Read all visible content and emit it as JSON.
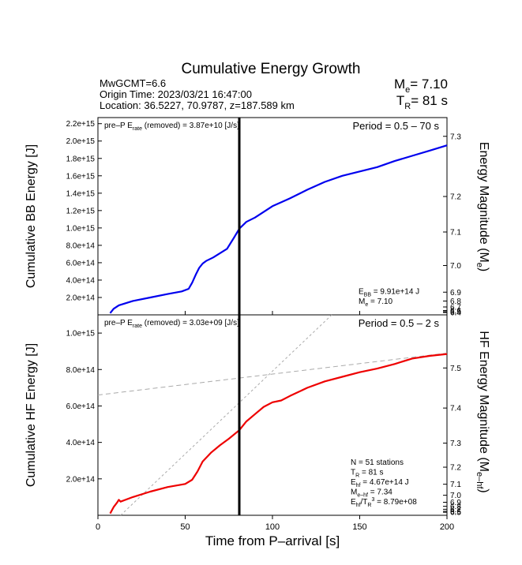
{
  "title": "Cumulative Energy Growth",
  "header": {
    "event_mw": "MwGCMT=6.6",
    "origin_time": "Origin Time: 2023/03/21 16:47:00",
    "location": "Location: 36.5227, 70.9787, z=187.589 km",
    "me_base": "M",
    "me_sub": "e",
    "me_value": "= 7.10",
    "tr_base": "T",
    "tr_sub": "R",
    "tr_value": "= 81  s"
  },
  "xlabel": "Time from P–arrival [s]",
  "x_ticks": [
    "0",
    "50",
    "100",
    "150",
    "200"
  ],
  "chart_data": [
    {
      "type": "line",
      "panel": "broadband",
      "ylabel": "Cumulative BB Energy [J]",
      "ylabel_right": "Energy Magnitude (M",
      "ylabel_right_sub": "e",
      "ylabel_right_end": ")",
      "xlim": [
        0,
        200
      ],
      "ylim": [
        0,
        2270000000000000.0
      ],
      "y_ticks": [
        {
          "v": 200000000000000.0,
          "label": "2.0e+14"
        },
        {
          "v": 400000000000000.0,
          "label": "4.0e+14"
        },
        {
          "v": 600000000000000.0,
          "label": "6.0e+14"
        },
        {
          "v": 800000000000000.0,
          "label": "8.0e+14"
        },
        {
          "v": 1000000000000000.0,
          "label": "1.0e+15"
        },
        {
          "v": 1200000000000000.0,
          "label": "1.2e+15"
        },
        {
          "v": 1400000000000000.0,
          "label": "1.4e+15"
        },
        {
          "v": 1600000000000000.0,
          "label": "1.6e+15"
        },
        {
          "v": 1800000000000000.0,
          "label": "1.8e+15"
        },
        {
          "v": 2000000000000000.0,
          "label": "2.0e+15"
        },
        {
          "v": 2200000000000000.0,
          "label": "2.2e+15"
        }
      ],
      "right_ticks": [
        "6.4",
        "6.5",
        "6.6",
        "6.7",
        "6.8",
        "6.9",
        "7.0",
        "7.1",
        "7.2",
        "7.3"
      ],
      "series": [
        {
          "color": "#0000ee",
          "x": [
            7,
            9,
            12,
            20,
            30,
            40,
            48,
            52,
            54,
            56,
            58,
            60,
            62,
            66,
            70,
            74,
            78,
            81,
            85,
            90,
            100,
            110,
            120,
            130,
            140,
            150,
            160,
            170,
            180,
            190,
            200
          ],
          "y": [
            20000000000000.0,
            70000000000000.0,
            110000000000000.0,
            160000000000000.0,
            200000000000000.0,
            240000000000000.0,
            270000000000000.0,
            300000000000000.0,
            370000000000000.0,
            460000000000000.0,
            540000000000000.0,
            590000000000000.0,
            620000000000000.0,
            660000000000000.0,
            710000000000000.0,
            760000000000000.0,
            890000000000000.0,
            991000000000000.0,
            1070000000000000.0,
            1120000000000000.0,
            1250000000000000.0,
            1340000000000000.0,
            1440000000000000.0,
            1530000000000000.0,
            1600000000000000.0,
            1650000000000000.0,
            1700000000000000.0,
            1770000000000000.0,
            1830000000000000.0,
            1890000000000000.0,
            1950000000000000.0
          ]
        }
      ],
      "vline_x": 81,
      "top_left_text": "pre–P E",
      "top_left_sub": "rate",
      "top_left_rest": " (removed) = 3.87e+10 [J/s]",
      "top_right_text": "Period = 0.5 – 70 s",
      "annotations": [
        {
          "base": "E",
          "sub": "BB",
          "rest": " = 9.91e+14 J"
        },
        {
          "base": "M",
          "sub": "e",
          "rest": " = 7.10"
        }
      ]
    },
    {
      "type": "line",
      "panel": "high-frequency",
      "ylabel": "Cumulative HF Energy [J]",
      "ylabel_right": "HF Energy Magnitude (M",
      "ylabel_right_sub": "e–hf",
      "ylabel_right_end": ")",
      "xlim": [
        0,
        200
      ],
      "ylim": [
        0,
        1100000000000000.0
      ],
      "y_ticks": [
        {
          "v": 200000000000000.0,
          "label": "2.0e+14"
        },
        {
          "v": 400000000000000.0,
          "label": "4.0e+14"
        },
        {
          "v": 600000000000000.0,
          "label": "6.0e+14"
        },
        {
          "v": 800000000000000.0,
          "label": "8.0e+14"
        },
        {
          "v": 1000000000000000.0,
          "label": "1.0e+15"
        }
      ],
      "right_ticks": [
        "6.5",
        "6.6",
        "6.7",
        "6.8",
        "6.9",
        "7.0",
        "7.1",
        "7.2",
        "7.3",
        "7.4",
        "7.5"
      ],
      "series": [
        {
          "color": "#ee0000",
          "x": [
            7,
            9,
            11,
            12,
            13,
            20,
            30,
            40,
            50,
            54,
            57,
            60,
            65,
            70,
            75,
            81,
            85,
            90,
            95,
            100,
            105,
            110,
            120,
            130,
            140,
            150,
            160,
            170,
            180,
            190,
            200
          ],
          "y": [
            10000000000000.0,
            45000000000000.0,
            70000000000000.0,
            85000000000000.0,
            75000000000000.0,
            100000000000000.0,
            130000000000000.0,
            155000000000000.0,
            172000000000000.0,
            195000000000000.0,
            240000000000000.0,
            295000000000000.0,
            345000000000000.0,
            385000000000000.0,
            420000000000000.0,
            467000000000000.0,
            515000000000000.0,
            555000000000000.0,
            595000000000000.0,
            620000000000000.0,
            630000000000000.0,
            655000000000000.0,
            700000000000000.0,
            735000000000000.0,
            760000000000000.0,
            785000000000000.0,
            805000000000000.0,
            830000000000000.0,
            860000000000000.0,
            875000000000000.0,
            885000000000000.0
          ]
        }
      ],
      "guide_lines": [
        {
          "style": "dashed",
          "x": [
            0,
            200
          ],
          "y": [
            660000000000000.0,
            890000000000000.0
          ]
        },
        {
          "style": "dotted",
          "x": [
            13,
            200
          ],
          "y": [
            0,
            1700000000000000.0
          ]
        }
      ],
      "vline_x": 81,
      "top_left_text": "pre–P E",
      "top_left_sub": "rate",
      "top_left_rest": " (removed) = 3.03e+09 [J/s]",
      "top_right_text": "Period = 0.5 – 2 s",
      "annotations": [
        {
          "base": "N = 51 stations",
          "sub": "",
          "rest": ""
        },
        {
          "base": "T",
          "sub": "R",
          "rest": " = 81  s"
        },
        {
          "base": "E",
          "sub": "hf",
          "rest": " = 4.67e+14 J"
        },
        {
          "base": "M",
          "sub": "e–hf",
          "rest": " = 7.34"
        },
        {
          "base": "E",
          "sub": "hf",
          "rest": "/T",
          "sub2": "R",
          "sup": "3",
          "rest2": " =  8.79e+08"
        }
      ]
    }
  ]
}
